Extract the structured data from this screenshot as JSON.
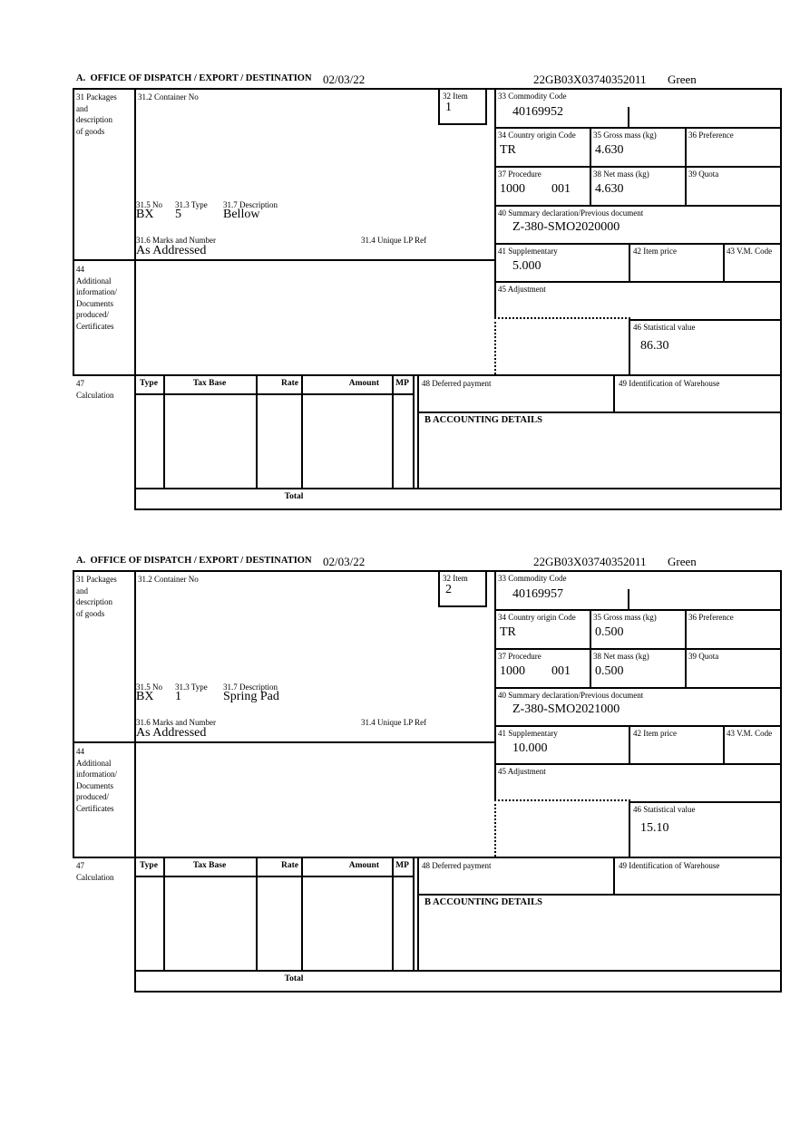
{
  "page": {
    "background": "#ffffff",
    "ink": "#000000"
  },
  "forms": [
    {
      "header": {
        "section": "A.  OFFICE OF DISPATCH / EXPORT / DESTINATION",
        "date": "02/03/22",
        "reference": "22GB03X03740352011",
        "status": "Green"
      },
      "box31": {
        "label": "31 Packages\nand\ndescription\nof goods"
      },
      "box31_2": {
        "label": "31.2 Container No",
        "value": ""
      },
      "box32": {
        "label": "32 Item",
        "value": "1"
      },
      "box33": {
        "label": "33 Commodity Code",
        "value": "40169952"
      },
      "box34": {
        "label": "34 Country origin Code",
        "value": "TR"
      },
      "box35": {
        "label": "35 Gross mass (kg)",
        "value": "4.630"
      },
      "box36": {
        "label": "36 Preference",
        "value": ""
      },
      "box37": {
        "label": "37 Procedure",
        "value1": "1000",
        "value2": "001"
      },
      "box38": {
        "label": "38 Net mass (kg)",
        "value": "4.630"
      },
      "box39": {
        "label": "39 Quota",
        "value": ""
      },
      "box40": {
        "label": "40 Summary declaration/Previous document",
        "value": "Z-380-SMO2020000"
      },
      "box41": {
        "label": "41 Supplementary",
        "value": "5.000"
      },
      "box42": {
        "label": "42 Item price",
        "value": ""
      },
      "box43": {
        "label": "43 V.M. Code",
        "value": ""
      },
      "box44": {
        "label": "44\nAdditional\ninformation/\nDocuments\nproduced/\nCertificates"
      },
      "box45": {
        "label": "45 Adjustment",
        "value": ""
      },
      "box46": {
        "label": "46 Statistical value",
        "value": "86.30"
      },
      "pack": {
        "no_label": "31.5 No",
        "no": "BX",
        "type_label": "31.3 Type",
        "type": "5",
        "desc_label": "31.7 Description",
        "desc": "Bellow"
      },
      "marks": {
        "label": "31.6 Marks and Number",
        "value": "As Addressed",
        "lp_label": "31.4 Unique LP Ref",
        "lp_value": ""
      },
      "box47": {
        "label": "47\nCalculation",
        "columns": [
          "Type",
          "Tax Base",
          "Rate",
          "Amount",
          "MP"
        ],
        "total_label": "Total"
      },
      "box48": {
        "label": "48 Deferred payment",
        "value": ""
      },
      "box49": {
        "label": "49 Identification of Warehouse",
        "value": ""
      },
      "boxB": {
        "label": "B ACCOUNTING DETAILS"
      }
    },
    {
      "header": {
        "section": "A.  OFFICE OF DISPATCH / EXPORT / DESTINATION",
        "date": "02/03/22",
        "reference": "22GB03X03740352011",
        "status": "Green"
      },
      "box31": {
        "label": "31 Packages\nand\ndescription\nof goods"
      },
      "box31_2": {
        "label": "31.2 Container No",
        "value": ""
      },
      "box32": {
        "label": "32 Item",
        "value": "2"
      },
      "box33": {
        "label": "33 Commodity Code",
        "value": "40169957"
      },
      "box34": {
        "label": "34 Country origin Code",
        "value": "TR"
      },
      "box35": {
        "label": "35 Gross mass (kg)",
        "value": "0.500"
      },
      "box36": {
        "label": "36 Preference",
        "value": ""
      },
      "box37": {
        "label": "37 Procedure",
        "value1": "1000",
        "value2": "001"
      },
      "box38": {
        "label": "38 Net mass (kg)",
        "value": "0.500"
      },
      "box39": {
        "label": "39 Quota",
        "value": ""
      },
      "box40": {
        "label": "40 Summary declaration/Previous document",
        "value": "Z-380-SMO2021000"
      },
      "box41": {
        "label": "41 Supplementary",
        "value": "10.000"
      },
      "box42": {
        "label": "42 Item price",
        "value": ""
      },
      "box43": {
        "label": "43 V.M. Code",
        "value": ""
      },
      "box44": {
        "label": "44\nAdditional\ninformation/\nDocuments\nproduced/\nCertificates"
      },
      "box45": {
        "label": "45 Adjustment",
        "value": ""
      },
      "box46": {
        "label": "46 Statistical value",
        "value": "15.10"
      },
      "pack": {
        "no_label": "31.5 No",
        "no": "BX",
        "type_label": "31.3 Type",
        "type": "1",
        "desc_label": "31.7 Description",
        "desc": "Spring Pad"
      },
      "marks": {
        "label": "31.6 Marks and Number",
        "value": "As Addressed",
        "lp_label": "31.4 Unique LP Ref",
        "lp_value": ""
      },
      "box47": {
        "label": "47\nCalculation",
        "columns": [
          "Type",
          "Tax Base",
          "Rate",
          "Amount",
          "MP"
        ],
        "total_label": "Total"
      },
      "box48": {
        "label": "48 Deferred payment",
        "value": ""
      },
      "box49": {
        "label": "49 Identification of Warehouse",
        "value": ""
      },
      "boxB": {
        "label": "B ACCOUNTING DETAILS"
      }
    }
  ]
}
